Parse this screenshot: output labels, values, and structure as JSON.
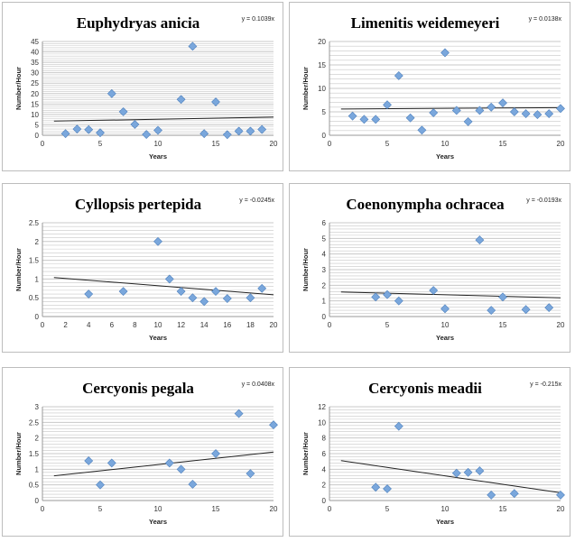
{
  "chart_data": [
    {
      "type": "scatter",
      "title": "Euphydryas anicia",
      "equation": "y = 0.1039x",
      "xlabel": "Years",
      "ylabel": "Number/Hour",
      "xlim": [
        0,
        20
      ],
      "xticks": [
        0,
        5,
        10,
        15,
        20
      ],
      "ylim": [
        0,
        45
      ],
      "yticks": [
        0,
        5,
        10,
        15,
        20,
        25,
        30,
        35,
        40,
        45
      ],
      "grid": true,
      "points": [
        [
          2,
          0.8
        ],
        [
          3,
          3
        ],
        [
          4,
          2.7
        ],
        [
          5,
          1.2
        ],
        [
          6,
          20
        ],
        [
          7,
          11.3
        ],
        [
          8,
          5.2
        ],
        [
          9,
          0.4
        ],
        [
          10,
          2.4
        ],
        [
          12,
          17.2
        ],
        [
          13,
          42.7
        ],
        [
          14,
          0.8
        ],
        [
          15,
          16
        ],
        [
          16,
          0.3
        ],
        [
          17,
          2
        ],
        [
          18,
          2
        ],
        [
          19,
          2.8
        ]
      ],
      "trendline": [
        [
          1,
          6.8
        ],
        [
          20,
          8.7
        ]
      ]
    },
    {
      "type": "scatter",
      "title": "Limenitis weidemeyeri",
      "equation": "y = 0.0138x",
      "xlabel": "Years",
      "ylabel": "Number/Hour",
      "xlim": [
        0,
        20
      ],
      "xticks": [
        0,
        5,
        10,
        15,
        20
      ],
      "ylim": [
        0,
        20
      ],
      "yticks": [
        0,
        5,
        10,
        15,
        20
      ],
      "grid": true,
      "points": [
        [
          2,
          4.1
        ],
        [
          3,
          3.4
        ],
        [
          4,
          3.4
        ],
        [
          5,
          6.5
        ],
        [
          6,
          12.7
        ],
        [
          7,
          3.7
        ],
        [
          8,
          1.1
        ],
        [
          9,
          4.8
        ],
        [
          10,
          17.6
        ],
        [
          11,
          5.3
        ],
        [
          12,
          2.9
        ],
        [
          13,
          5.3
        ],
        [
          14,
          6
        ],
        [
          15,
          6.9
        ],
        [
          16,
          5
        ],
        [
          17,
          4.6
        ],
        [
          18,
          4.4
        ],
        [
          19,
          4.6
        ],
        [
          20,
          5.7
        ]
      ],
      "trendline": [
        [
          1,
          5.6
        ],
        [
          20,
          5.9
        ]
      ]
    },
    {
      "type": "scatter",
      "title": "Cyllopsis pertepida",
      "equation": "y = -0.0245x",
      "xlabel": "Years",
      "ylabel": "Number/Hour",
      "xlim": [
        0,
        20
      ],
      "xticks": [
        0,
        2,
        4,
        6,
        8,
        10,
        12,
        14,
        16,
        18,
        20
      ],
      "ylim": [
        0,
        2.5
      ],
      "yticks": [
        0,
        0.5,
        1,
        1.5,
        2,
        2.5
      ],
      "grid": true,
      "points": [
        [
          4,
          0.6
        ],
        [
          7,
          0.67
        ],
        [
          10,
          2
        ],
        [
          11,
          1
        ],
        [
          12,
          0.67
        ],
        [
          13,
          0.5
        ],
        [
          14,
          0.4
        ],
        [
          15,
          0.67
        ],
        [
          16,
          0.48
        ],
        [
          18,
          0.5
        ],
        [
          19,
          0.75
        ]
      ],
      "trendline": [
        [
          1,
          1.04
        ],
        [
          20,
          0.58
        ]
      ]
    },
    {
      "type": "scatter",
      "title": "Coenonympha ochracea",
      "equation": "y = -0.0193x",
      "xlabel": "Years",
      "ylabel": "Number/Hour",
      "xlim": [
        0,
        20
      ],
      "xticks": [
        0,
        5,
        10,
        15,
        20
      ],
      "ylim": [
        0,
        6
      ],
      "yticks": [
        0,
        1,
        2,
        3,
        4,
        5,
        6
      ],
      "grid": true,
      "points": [
        [
          4,
          1.25
        ],
        [
          5,
          1.4
        ],
        [
          6,
          1
        ],
        [
          9,
          1.67
        ],
        [
          10,
          0.5
        ],
        [
          13,
          4.9
        ],
        [
          14,
          0.4
        ],
        [
          15,
          1.25
        ],
        [
          17,
          0.45
        ],
        [
          19,
          0.57
        ]
      ],
      "trendline": [
        [
          1,
          1.57
        ],
        [
          20,
          1.2
        ]
      ]
    },
    {
      "type": "scatter",
      "title": "Cercyonis pegala",
      "equation": "y = 0.0408x",
      "xlabel": "Years",
      "ylabel": "Number/Hour",
      "xlim": [
        0,
        20
      ],
      "xticks": [
        0,
        5,
        10,
        15,
        20
      ],
      "ylim": [
        0,
        3
      ],
      "yticks": [
        0,
        0.5,
        1,
        1.5,
        2,
        2.5,
        3
      ],
      "grid": true,
      "points": [
        [
          4,
          1.27
        ],
        [
          5,
          0.5
        ],
        [
          6,
          1.2
        ],
        [
          11,
          1.2
        ],
        [
          12,
          1
        ],
        [
          13,
          0.52
        ],
        [
          15,
          1.5
        ],
        [
          17,
          2.78
        ],
        [
          18,
          0.86
        ],
        [
          20,
          2.42
        ]
      ],
      "trendline": [
        [
          1,
          0.79
        ],
        [
          20,
          1.55
        ]
      ]
    },
    {
      "type": "scatter",
      "title": "Cercyonis meadii",
      "equation": "y = -0.215x",
      "xlabel": "Years",
      "ylabel": "Number/Hour",
      "xlim": [
        0,
        20
      ],
      "xticks": [
        0,
        5,
        10,
        15,
        20
      ],
      "ylim": [
        0,
        12
      ],
      "yticks": [
        0,
        2,
        4,
        6,
        8,
        10,
        12
      ],
      "grid": true,
      "points": [
        [
          4,
          1.7
        ],
        [
          5,
          1.5
        ],
        [
          6,
          9.5
        ],
        [
          11,
          3.5
        ],
        [
          12,
          3.6
        ],
        [
          13,
          3.8
        ],
        [
          14,
          0.7
        ],
        [
          16,
          0.9
        ],
        [
          20,
          0.7
        ]
      ],
      "trendline": [
        [
          1,
          5.1
        ],
        [
          20,
          1.0
        ]
      ]
    }
  ],
  "colors": {
    "marker": "#7aa7dc",
    "marker_stroke": "#4f81bd",
    "trendline": "#222222",
    "grid": "#c8c8c8"
  }
}
